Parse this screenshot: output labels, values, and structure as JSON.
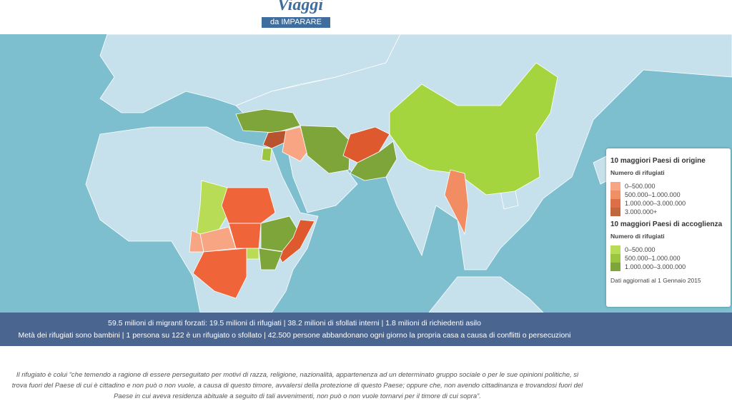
{
  "header": {
    "logo_title": "Viaggi",
    "logo_subtitle": "da IMPARARE"
  },
  "legend": {
    "origin": {
      "title": "10 maggiori Paesi di origine",
      "subtitle": "Numero di rifugiati",
      "items": [
        {
          "label": "0–500.000",
          "color": "#f7a583"
        },
        {
          "label": "500.000–1.000.000",
          "color": "#f08f63"
        },
        {
          "label": "1.000.000–3.000.000",
          "color": "#de6e45"
        },
        {
          "label": "3.000.000+",
          "color": "#c0673f"
        }
      ]
    },
    "host": {
      "title": "10 maggiori Paesi di accoglienza",
      "subtitle": "Numero di rifugiati",
      "items": [
        {
          "label": "0–500.000",
          "color": "#b8dc55"
        },
        {
          "label": "500.000–1.000.000",
          "color": "#9cc53f"
        },
        {
          "label": "1.000.000–3.000.000",
          "color": "#7ea53a"
        }
      ]
    },
    "note": "Dati aggiornati al 1 Gennaio 2015"
  },
  "banner": {
    "lines": [
      "59.5 milioni di migranti forzati: 19.5 milioni di rifugiati | 38.2 milioni di sfollati interni | 1.8 milioni di richiedenti asilo",
      "Metà dei rifugiati sono bambini | 1 persona su 122 è un rifugiato o sfollato | 42.500 persone abbandonano ogni giorno la propria casa a causa di conflitti o persecuzioni"
    ]
  },
  "quote": "Il rifugiato è colui “che temendo a ragione di essere perseguitato per motivi di razza, religione, nazionalità, appartenenza ad un determinato gruppo sociale o per le sue opinioni politiche, si trova fuori del Paese di cui è cittadino e non può o non vuole, a causa di questo timore, avvalersi della protezione di questo Paese; oppure che, non avendo cittadinanza e trovandosi fuori del Paese in cui aveva residenza abituale a seguito di tali avvenimenti, non può o non vuole tornarvi per il timore di cui sopra”."
}
